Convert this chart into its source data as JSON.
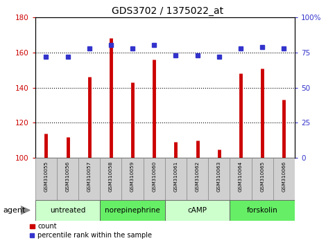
{
  "title": "GDS3702 / 1375022_at",
  "samples": [
    "GSM310055",
    "GSM310056",
    "GSM310057",
    "GSM310058",
    "GSM310059",
    "GSM310060",
    "GSM310061",
    "GSM310062",
    "GSM310063",
    "GSM310064",
    "GSM310065",
    "GSM310066"
  ],
  "counts": [
    114,
    112,
    146,
    168,
    143,
    156,
    109,
    110,
    105,
    148,
    151,
    133
  ],
  "percentile_ranks": [
    72,
    72,
    78,
    80,
    78,
    80,
    73,
    73,
    72,
    78,
    79,
    78
  ],
  "groups": [
    {
      "label": "untreated",
      "start": 0,
      "end": 3,
      "color": "#ccffcc"
    },
    {
      "label": "norepinephrine",
      "start": 3,
      "end": 6,
      "color": "#66ee66"
    },
    {
      "label": "cAMP",
      "start": 6,
      "end": 9,
      "color": "#ccffcc"
    },
    {
      "label": "forskolin",
      "start": 9,
      "end": 12,
      "color": "#66ee66"
    }
  ],
  "ylim_left": [
    100,
    180
  ],
  "ylim_right": [
    0,
    100
  ],
  "yticks_left": [
    100,
    120,
    140,
    160,
    180
  ],
  "yticks_right": [
    0,
    25,
    50,
    75,
    100
  ],
  "bar_color": "#cc0000",
  "dot_color": "#3333cc",
  "grid_color": "#000000",
  "background_color": "#ffffff",
  "xlabel": "agent",
  "label_count": "count",
  "label_percentile": "percentile rank within the sample",
  "gray_sample_bg": "#d0d0d0"
}
